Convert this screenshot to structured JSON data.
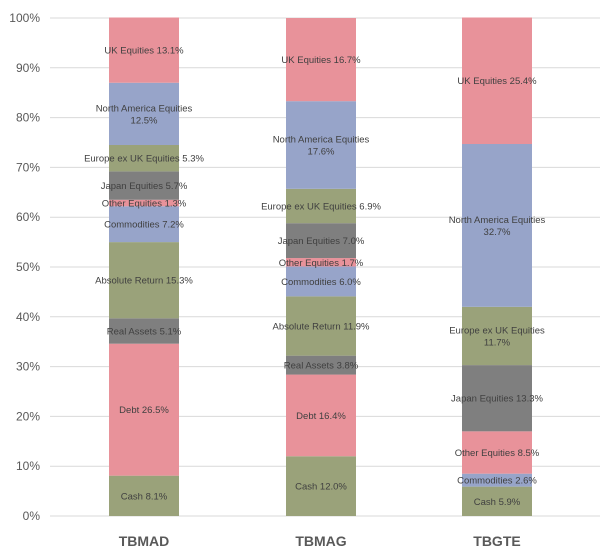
{
  "chart_data": {
    "type": "bar",
    "stacked": true,
    "percent": true,
    "categories": [
      "TBMAD",
      "TBMAG",
      "TBGTE"
    ],
    "ylim": [
      0,
      100
    ],
    "yticks": [
      "0%",
      "10%",
      "20%",
      "30%",
      "40%",
      "50%",
      "60%",
      "70%",
      "80%",
      "90%",
      "100%"
    ],
    "grid": true,
    "legend": "none",
    "series": [
      {
        "name": "Cash",
        "color": "#9aa27a",
        "values": [
          8.1,
          12.0,
          5.9
        ],
        "labels": [
          "Cash 8.1%",
          "Cash 12.0%",
          "Cash 5.9%"
        ]
      },
      {
        "name": "Commodities",
        "color": "#97a4c9",
        "values": [
          0,
          0,
          2.6
        ],
        "labels": [
          "",
          "",
          "Commodities 2.6%"
        ]
      },
      {
        "name": "Other Equities",
        "color": "#e8929a",
        "values": [
          0,
          0,
          8.5
        ],
        "labels": [
          "",
          "",
          "Other Equities 8.5%"
        ]
      },
      {
        "name": "Japan Equities",
        "color": "#7f7f7f",
        "values": [
          0,
          0,
          13.3
        ],
        "labels": [
          "",
          "",
          "Japan Equities 13.3%"
        ]
      },
      {
        "name": "Europe ex UK Equities",
        "color": "#9aa27a",
        "values": [
          0,
          0,
          11.7
        ],
        "labels": [
          "",
          "",
          "Europe ex UK Equities\n11.7%"
        ]
      },
      {
        "name": "North America Equities",
        "color": "#97a4c9",
        "values": [
          0,
          0,
          32.7
        ],
        "labels": [
          "",
          "",
          "North America Equities\n32.7%"
        ]
      },
      {
        "name": "UK Equities",
        "color": "#e8929a",
        "values": [
          0,
          0,
          25.4
        ],
        "labels": [
          "",
          "",
          "UK Equities 25.4%"
        ]
      },
      {
        "name": "Debt",
        "color": "#e8929a",
        "values": [
          26.5,
          16.4,
          0
        ],
        "labels": [
          "Debt 26.5%",
          "Debt 16.4%",
          ""
        ]
      },
      {
        "name": "Real Assets",
        "color": "#7f7f7f",
        "values": [
          5.1,
          3.8,
          0
        ],
        "labels": [
          "Real Assets 5.1%",
          "Real Assets 3.8%",
          ""
        ]
      },
      {
        "name": "Absolute Return",
        "color": "#9aa27a",
        "values": [
          15.3,
          11.9,
          0
        ],
        "labels": [
          "Absolute Return 15.3%",
          "Absolute Return 11.9%",
          ""
        ]
      },
      {
        "name": "Commodities",
        "color": "#97a4c9",
        "values": [
          7.2,
          6.0,
          0
        ],
        "labels": [
          "Commodities 7.2%",
          "Commodities 6.0%",
          ""
        ]
      },
      {
        "name": "Other Equities",
        "color": "#e8929a",
        "values": [
          1.3,
          1.7,
          0
        ],
        "labels": [
          "Other Equities 1.3%",
          "Other Equities 1.7%",
          ""
        ]
      },
      {
        "name": "Japan Equities",
        "color": "#7f7f7f",
        "values": [
          5.7,
          7.0,
          0
        ],
        "labels": [
          "Japan Equities 5.7%",
          "Japan Equities 7.0%",
          ""
        ]
      },
      {
        "name": "Europe ex UK Equities",
        "color": "#9aa27a",
        "values": [
          5.3,
          6.9,
          0
        ],
        "labels": [
          "Europe ex UK Equities 5.3%",
          "Europe ex UK Equities 6.9%",
          ""
        ]
      },
      {
        "name": "North America Equities",
        "color": "#97a4c9",
        "values": [
          12.5,
          17.6,
          0
        ],
        "labels": [
          "North America Equities\n12.5%",
          "North America Equities\n17.6%",
          ""
        ]
      },
      {
        "name": "UK Equities",
        "color": "#e8929a",
        "values": [
          13.1,
          16.7,
          0
        ],
        "labels": [
          "UK Equities 13.1%",
          "UK Equities 16.7%",
          ""
        ]
      }
    ]
  }
}
